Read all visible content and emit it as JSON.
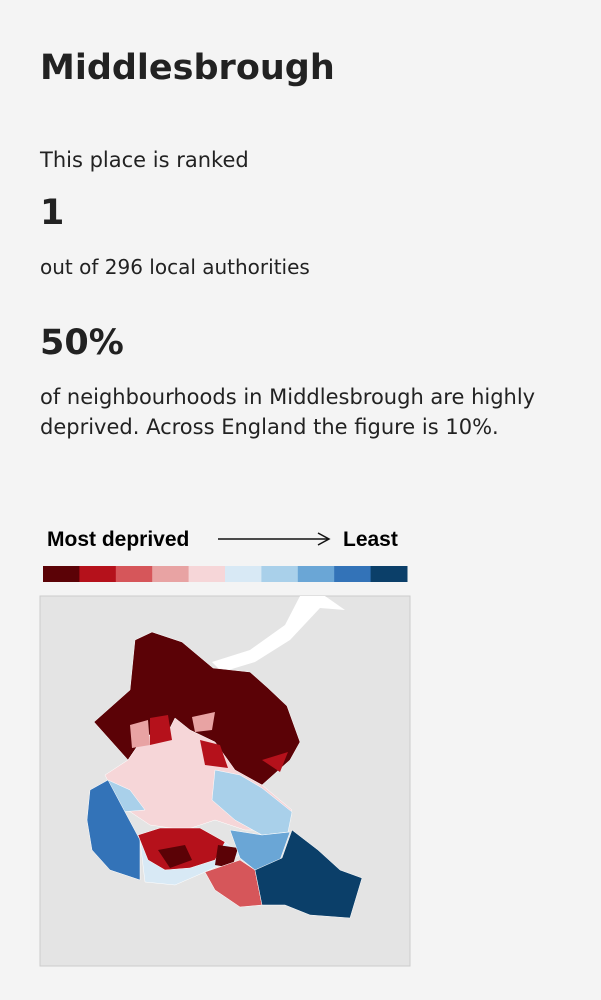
{
  "header": {
    "title": "Middlesbrough"
  },
  "ranking": {
    "intro": "This place is ranked",
    "rank": "1",
    "out_of": "out of 296 local authorities"
  },
  "deprivation": {
    "share": "50%",
    "description": "of neighbourhoods in Middlesbrough are highly deprived. Across England the figure is 10%."
  },
  "legend": {
    "low_label": "Most deprived",
    "high_label": "Least",
    "colors": [
      "#5b0206",
      "#b5111b",
      "#d6565a",
      "#e8a3a3",
      "#f6d6d8",
      "#d8e9f5",
      "#a9d0ea",
      "#6aa6d6",
      "#3373b8",
      "#0b3f69"
    ]
  }
}
